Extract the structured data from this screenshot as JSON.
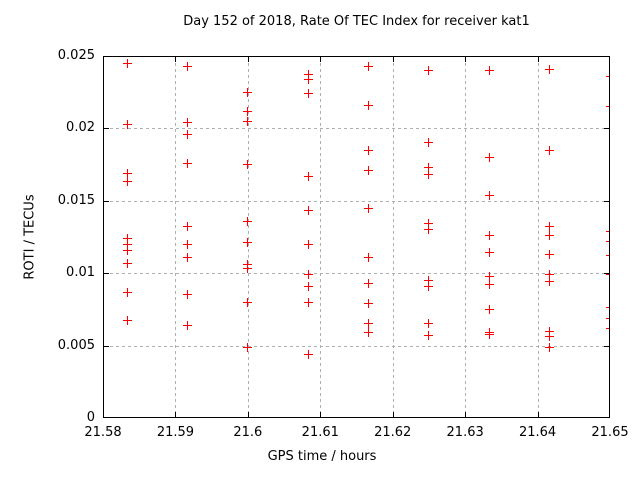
{
  "chart_data": {
    "type": "scatter",
    "title": "Day 152 of 2018, Rate Of TEC Index for receiver kat1",
    "xlabel": "GPS time / hours",
    "ylabel": "ROTI / TECUs",
    "xlim": [
      21.58,
      21.65
    ],
    "ylim": [
      0,
      0.025
    ],
    "grid": true,
    "legend": "none",
    "marker": "plus",
    "colors": {
      "marker": "#ff0000",
      "grid": "#b0b0b0",
      "axis": "#000000",
      "background": "#ffffff",
      "text": "#000000"
    },
    "x_ticks": [
      {
        "v": 21.58,
        "label": "21.58"
      },
      {
        "v": 21.59,
        "label": "21.59"
      },
      {
        "v": 21.6,
        "label": "21.6"
      },
      {
        "v": 21.61,
        "label": "21.61"
      },
      {
        "v": 21.62,
        "label": "21.62"
      },
      {
        "v": 21.63,
        "label": "21.63"
      },
      {
        "v": 21.64,
        "label": "21.64"
      },
      {
        "v": 21.65,
        "label": "21.65"
      }
    ],
    "y_ticks": [
      {
        "v": 0,
        "label": "0"
      },
      {
        "v": 0.005,
        "label": "0.005"
      },
      {
        "v": 0.01,
        "label": "0.01"
      },
      {
        "v": 0.015,
        "label": "0.015"
      },
      {
        "v": 0.02,
        "label": "0.02"
      },
      {
        "v": 0.025,
        "label": "0.025"
      }
    ],
    "series": [
      {
        "name": "ROTI",
        "points": [
          [
            21.58333,
            0.0245
          ],
          [
            21.58333,
            0.0203
          ],
          [
            21.58333,
            0.0169
          ],
          [
            21.58333,
            0.0163
          ],
          [
            21.58333,
            0.0124
          ],
          [
            21.58333,
            0.012
          ],
          [
            21.58333,
            0.0116
          ],
          [
            21.58333,
            0.0107
          ],
          [
            21.58333,
            0.0087
          ],
          [
            21.58333,
            0.0067
          ],
          [
            21.59167,
            0.0243
          ],
          [
            21.59167,
            0.0204
          ],
          [
            21.59167,
            0.0196
          ],
          [
            21.59167,
            0.0176
          ],
          [
            21.59167,
            0.0132
          ],
          [
            21.59167,
            0.012
          ],
          [
            21.59167,
            0.0111
          ],
          [
            21.59167,
            0.0085
          ],
          [
            21.59167,
            0.0064
          ],
          [
            21.6,
            0.0225
          ],
          [
            21.6,
            0.0212
          ],
          [
            21.6,
            0.0205
          ],
          [
            21.6,
            0.0175
          ],
          [
            21.6,
            0.0136
          ],
          [
            21.6,
            0.0121
          ],
          [
            21.6,
            0.0106
          ],
          [
            21.6,
            0.0103
          ],
          [
            21.6,
            0.008
          ],
          [
            21.6,
            0.0049
          ],
          [
            21.60833,
            0.0237
          ],
          [
            21.60833,
            0.0234
          ],
          [
            21.60833,
            0.0224
          ],
          [
            21.60833,
            0.0167
          ],
          [
            21.60833,
            0.0143
          ],
          [
            21.60833,
            0.012
          ],
          [
            21.60833,
            0.0099
          ],
          [
            21.60833,
            0.0091
          ],
          [
            21.60833,
            0.008
          ],
          [
            21.60833,
            0.0044
          ],
          [
            21.61667,
            0.0243
          ],
          [
            21.61667,
            0.0216
          ],
          [
            21.61667,
            0.0185
          ],
          [
            21.61667,
            0.0171
          ],
          [
            21.61667,
            0.0145
          ],
          [
            21.61667,
            0.0111
          ],
          [
            21.61667,
            0.0093
          ],
          [
            21.61667,
            0.0079
          ],
          [
            21.61667,
            0.0065
          ],
          [
            21.61667,
            0.0059
          ],
          [
            21.625,
            0.024
          ],
          [
            21.625,
            0.019
          ],
          [
            21.625,
            0.0173
          ],
          [
            21.625,
            0.0168
          ],
          [
            21.625,
            0.0134
          ],
          [
            21.625,
            0.013
          ],
          [
            21.625,
            0.0095
          ],
          [
            21.625,
            0.0091
          ],
          [
            21.625,
            0.0065
          ],
          [
            21.625,
            0.0057
          ],
          [
            21.63333,
            0.024
          ],
          [
            21.63333,
            0.018
          ],
          [
            21.63333,
            0.0154
          ],
          [
            21.63333,
            0.0126
          ],
          [
            21.63333,
            0.0114
          ],
          [
            21.63333,
            0.0098
          ],
          [
            21.63333,
            0.0092
          ],
          [
            21.63333,
            0.0075
          ],
          [
            21.63333,
            0.0059
          ],
          [
            21.63333,
            0.0058
          ],
          [
            21.64167,
            0.0241
          ],
          [
            21.64167,
            0.0185
          ],
          [
            21.64167,
            0.0132
          ],
          [
            21.64167,
            0.0126
          ],
          [
            21.64167,
            0.0113
          ],
          [
            21.64167,
            0.0099
          ],
          [
            21.64167,
            0.0094
          ],
          [
            21.64167,
            0.006
          ],
          [
            21.64167,
            0.0056
          ],
          [
            21.64167,
            0.0049
          ],
          [
            21.65,
            0.0236
          ],
          [
            21.65,
            0.0215
          ],
          [
            21.65,
            0.0129
          ],
          [
            21.65,
            0.0122
          ],
          [
            21.65,
            0.0112
          ],
          [
            21.65,
            0.0099
          ],
          [
            21.65,
            0.0076
          ],
          [
            21.65,
            0.0069
          ],
          [
            21.65,
            0.0062
          ]
        ]
      }
    ]
  }
}
